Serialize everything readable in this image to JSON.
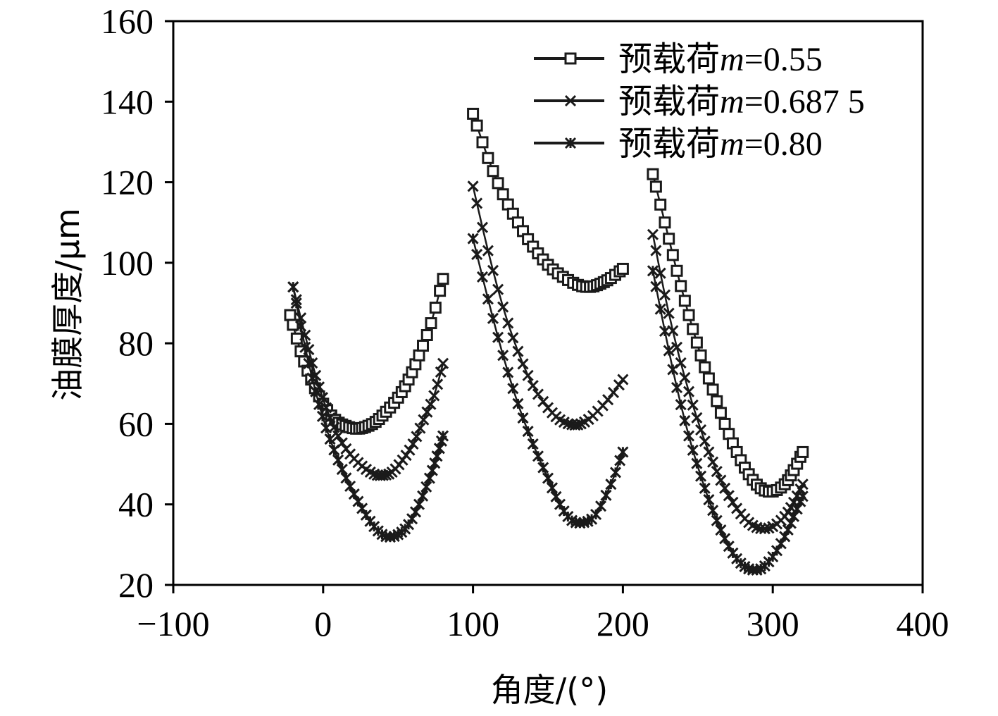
{
  "chart_data": {
    "type": "line",
    "xlabel": "角度/(°)",
    "ylabel": "油膜厚度/μm",
    "xlim": [
      -100,
      400
    ],
    "ylim": [
      20,
      160
    ],
    "xticks": [
      -100,
      0,
      100,
      200,
      300,
      400
    ],
    "yticks": [
      20,
      40,
      60,
      80,
      100,
      120,
      140,
      160
    ],
    "xtick_labels": [
      "−100",
      "0",
      "100",
      "200",
      "300",
      "400"
    ],
    "ytick_labels": [
      "20",
      "40",
      "60",
      "80",
      "100",
      "120",
      "140",
      "160"
    ],
    "grid": false,
    "legend_position": "top-right",
    "series": [
      {
        "name": "预载荷m=0.55",
        "legend_prefix": "预载荷",
        "legend_var": "m",
        "legend_value": "=0.55",
        "marker": "square",
        "color": "#1a1a1a",
        "segments": [
          {
            "x": [
              -22,
              -15,
              -8,
              0,
              8,
              15,
              22,
              28,
              35,
              42,
              50,
              57,
              64,
              72,
              80
            ],
            "y": [
              87,
              78,
              71,
              65,
              61,
              59.5,
              58.8,
              59.2,
              60.5,
              63,
              66.5,
              71,
              77,
              85,
              96
            ]
          },
          {
            "x": [
              100,
              110,
              120,
              130,
              140,
              150,
              160,
              170,
              178,
              185,
              192,
              200
            ],
            "y": [
              137,
              126,
              117,
              110,
              104,
              99.5,
              96.5,
              94.5,
              94,
              94.8,
              96.2,
              98.5
            ]
          },
          {
            "x": [
              220,
              228,
              236,
              244,
              252,
              260,
              268,
              276,
              284,
              292,
              300,
              308,
              314,
              320
            ],
            "y": [
              122,
              110,
              98,
              87,
              77,
              68.5,
              60,
              53,
              47.5,
              44,
              43.2,
              45,
              48.5,
              53
            ]
          }
        ]
      },
      {
        "name": "预载荷m=0.687 5",
        "legend_prefix": "预载荷",
        "legend_var": "m",
        "legend_value": "=0.687 5",
        "marker": "x",
        "color": "#1a1a1a",
        "segments": [
          {
            "x": [
              -20,
              -12,
              -5,
              2,
              10,
              18,
              26,
              34,
              40,
              46,
              53,
              60,
              67,
              74,
              80
            ],
            "y": [
              94,
              82,
              72,
              64,
              57,
              52.5,
              49.5,
              47.5,
              47.2,
              48,
              51,
              55,
              61,
              67,
              75
            ]
          },
          {
            "x": [
              100,
              110,
              120,
              130,
              140,
              150,
              158,
              166,
              172,
              180,
              190,
              200
            ],
            "y": [
              119,
              103,
              89,
              78,
              69.5,
              64,
              61,
              59.8,
              60,
              62,
              66,
              71
            ]
          },
          {
            "x": [
              220,
              228,
              236,
              244,
              252,
              260,
              268,
              276,
              284,
              292,
              300,
              308,
              314,
              320
            ],
            "y": [
              107,
              92,
              79,
              68,
              58.5,
              50.5,
              44,
              39,
              35.5,
              34,
              34.5,
              37,
              40.5,
              45
            ]
          }
        ]
      },
      {
        "name": "预载荷m=0.80",
        "legend_prefix": "预载荷",
        "legend_var": "m",
        "legend_value": "=0.80",
        "marker": "star",
        "color": "#1a1a1a",
        "segments": [
          {
            "x": [
              -20,
              -12,
              -5,
              2,
              10,
              18,
              26,
              34,
              42,
              50,
              57,
              64,
              71,
              76,
              80
            ],
            "y": [
              94,
              79,
              68,
              59,
              51,
              44.5,
              39,
              34.5,
              32,
              32.5,
              35,
              40,
              46.5,
              52,
              57
            ]
          },
          {
            "x": [
              100,
              110,
              120,
              130,
              140,
              150,
              158,
              166,
              174,
              182,
              192,
              200
            ],
            "y": [
              106,
              91,
              77,
              65,
              55,
              46.5,
              40,
              36,
              35.5,
              37.5,
              45,
              53
            ]
          },
          {
            "x": [
              220,
              228,
              236,
              244,
              252,
              260,
              268,
              276,
              284,
              292,
              300,
              308,
              314,
              320
            ],
            "y": [
              98,
              83,
              69,
              57,
              47,
              38.5,
              31.5,
              26.5,
              24,
              24,
              27,
              32,
              37,
              42
            ]
          }
        ]
      }
    ]
  }
}
